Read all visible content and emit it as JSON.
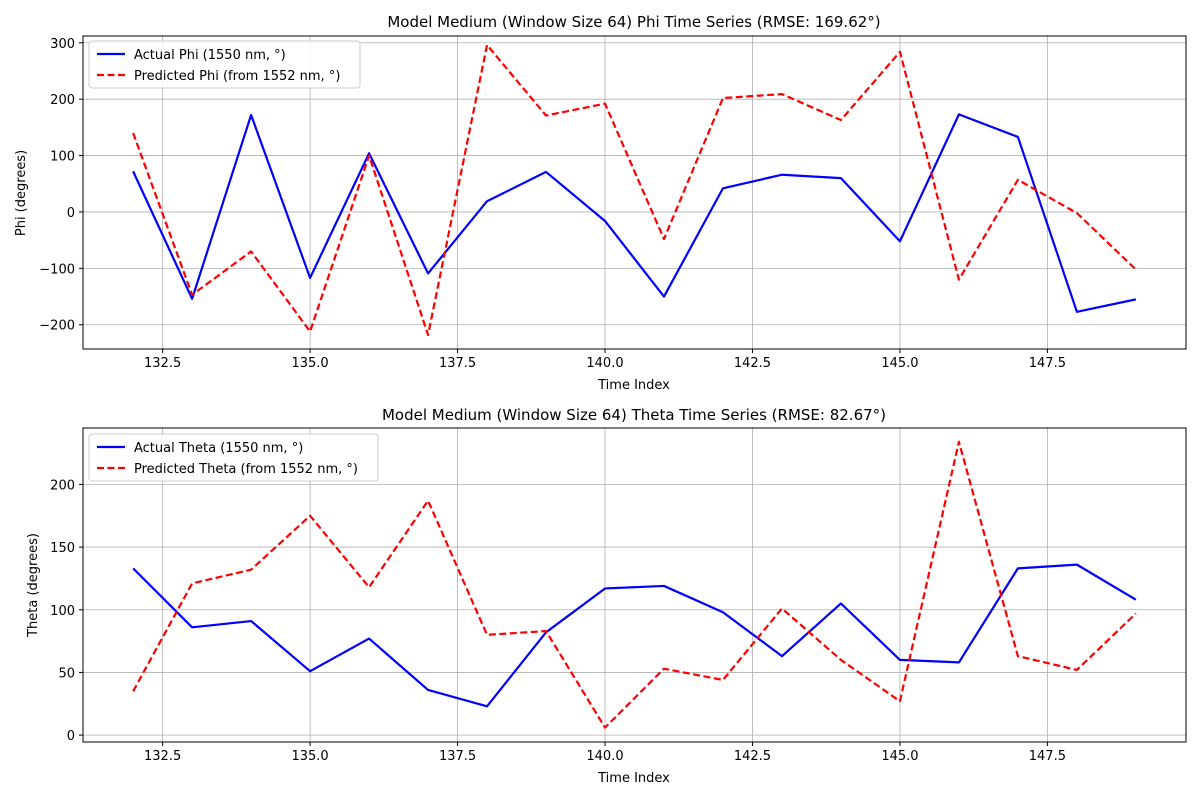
{
  "chart_data": [
    {
      "type": "line",
      "title": "Model Medium (Window Size 64) Phi Time Series (RMSE: 169.62°)",
      "xlabel": "Time Index",
      "ylabel": "Phi (degrees)",
      "xlim": [
        131.15,
        149.85
      ],
      "ylim": [
        -243,
        312
      ],
      "xticks": [
        132.5,
        135.0,
        137.5,
        140.0,
        142.5,
        145.0,
        147.5
      ],
      "xtick_labels": [
        "132.5",
        "135.0",
        "137.5",
        "140.0",
        "142.5",
        "145.0",
        "147.5"
      ],
      "yticks": [
        -200,
        -100,
        0,
        100,
        200,
        300
      ],
      "ytick_labels": [
        "−200",
        "−100",
        "0",
        "100",
        "200",
        "300"
      ],
      "grid": true,
      "legend_position": "upper left",
      "x": [
        132,
        133,
        134,
        135,
        136,
        137,
        138,
        139,
        140,
        141,
        142,
        143,
        144,
        145,
        146,
        147,
        148,
        149
      ],
      "series": [
        {
          "name": "Actual Phi (1550 nm, °)",
          "color": "#0000ff",
          "style": "solid",
          "values": [
            72,
            -154,
            172,
            -117,
            104,
            -109,
            19,
            71,
            -16,
            -150,
            42,
            66,
            60,
            -52,
            173,
            133,
            -177,
            -155
          ]
        },
        {
          "name": "Predicted Phi (from 1552 nm, °)",
          "color": "#ff0000",
          "style": "dashed",
          "values": [
            140,
            -147,
            -70,
            -212,
            100,
            -218,
            296,
            171,
            192,
            -48,
            202,
            209,
            163,
            284,
            -120,
            57,
            -2,
            -102
          ]
        }
      ]
    },
    {
      "type": "line",
      "title": "Model Medium (Window Size 64) Theta Time Series (RMSE: 82.67°)",
      "xlabel": "Time Index",
      "ylabel": "Theta (degrees)",
      "xlim": [
        131.15,
        149.85
      ],
      "ylim": [
        -5.5,
        245
      ],
      "xticks": [
        132.5,
        135.0,
        137.5,
        140.0,
        142.5,
        145.0,
        147.5
      ],
      "xtick_labels": [
        "132.5",
        "135.0",
        "137.5",
        "140.0",
        "142.5",
        "145.0",
        "147.5"
      ],
      "yticks": [
        0,
        50,
        100,
        150,
        200
      ],
      "ytick_labels": [
        "0",
        "50",
        "100",
        "150",
        "200"
      ],
      "grid": true,
      "legend_position": "upper left",
      "x": [
        132,
        133,
        134,
        135,
        136,
        137,
        138,
        139,
        140,
        141,
        142,
        143,
        144,
        145,
        146,
        147,
        148,
        149
      ],
      "series": [
        {
          "name": "Actual Theta (1550 nm, °)",
          "color": "#0000ff",
          "style": "solid",
          "values": [
            133,
            86,
            91,
            51,
            77,
            36,
            23,
            82,
            117,
            119,
            98,
            63,
            105,
            60,
            58,
            133,
            136,
            108
          ]
        },
        {
          "name": "Predicted Theta (from 1552 nm, °)",
          "color": "#ff0000",
          "style": "dashed",
          "values": [
            35,
            121,
            132,
            175,
            118,
            187,
            80,
            83,
            6,
            53,
            44,
            101,
            60,
            27,
            234,
            63,
            52,
            97
          ]
        }
      ]
    }
  ]
}
